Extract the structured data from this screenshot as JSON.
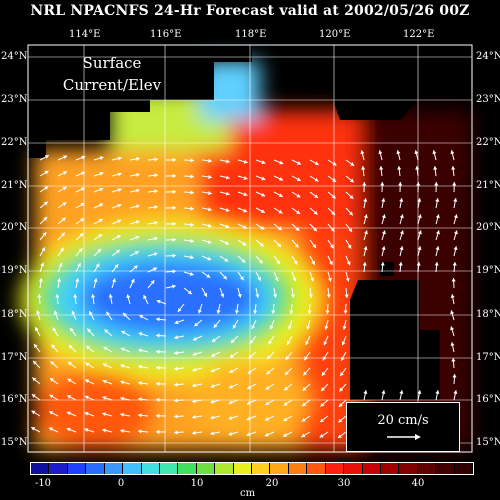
{
  "title": "NRL NPACNFS 24-Hr Forecast valid at 2002/05/26 00Z",
  "overlay": {
    "line1": "Surface",
    "line2": "Current/Elev"
  },
  "lon_labels": [
    "114°E",
    "116°E",
    "118°E",
    "120°E",
    "122°E"
  ],
  "lat_labels": [
    "24°N",
    "23°N",
    "22°N",
    "21°N",
    "20°N",
    "19°N",
    "18°N",
    "17°N",
    "16°N",
    "15°N"
  ],
  "scale": {
    "label": "20 cm/s"
  },
  "colorbar": {
    "colors": [
      "#1010a0",
      "#1c1ccc",
      "#2040ff",
      "#2a6cff",
      "#3a98ff",
      "#40c0ff",
      "#40e0e0",
      "#40e8b0",
      "#40e060",
      "#70e040",
      "#b0e830",
      "#e8f020",
      "#ffd020",
      "#ffa818",
      "#ff8010",
      "#ff5810",
      "#ff2010",
      "#e81008",
      "#c80008",
      "#a00000",
      "#800000",
      "#600000",
      "#400000",
      "#300000"
    ],
    "ticks": [
      "-10",
      "0",
      "10",
      "20",
      "30",
      "40"
    ]
  }
}
